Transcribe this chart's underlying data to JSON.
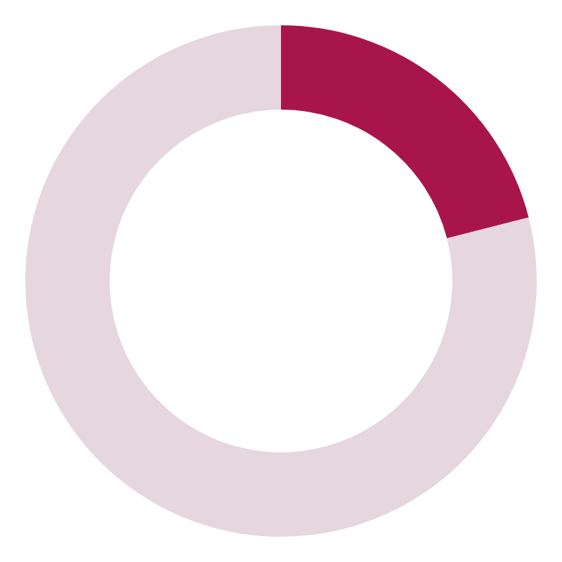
{
  "chart_data": {
    "type": "donut",
    "categories": [
      null,
      null
    ],
    "values": [
      21,
      79
    ],
    "colors": [
      "#a8154a",
      "#e6d6de"
    ],
    "legend": false
  }
}
